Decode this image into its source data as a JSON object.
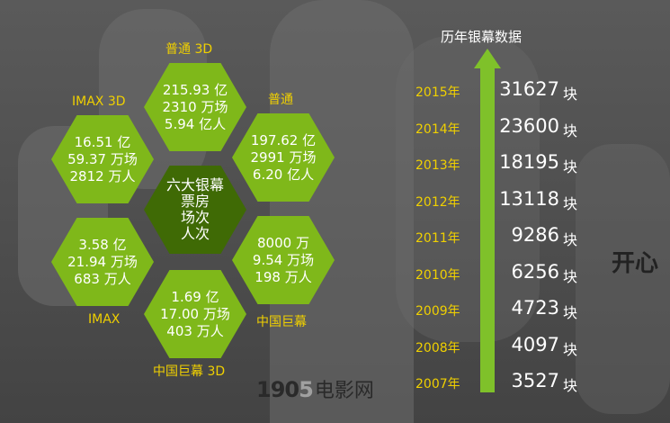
{
  "hexagons": {
    "center": {
      "line1": "六大银幕",
      "line2": "票房",
      "line3": "场次",
      "line4": "人次"
    },
    "standard_3d": {
      "label": "普通 3D",
      "box_office": "215.93 亿",
      "screenings": "2310 万场",
      "admissions": "5.94 亿人"
    },
    "standard": {
      "label": "普通",
      "box_office": "197.62 亿",
      "screenings": "2991 万场",
      "admissions": "6.20 亿人"
    },
    "imax_3d": {
      "label": "IMAX 3D",
      "box_office": "16.51 亿",
      "screenings": "59.37 万场",
      "admissions": "2812 万人"
    },
    "imax": {
      "label": "IMAX",
      "box_office": "3.58 亿",
      "screenings": "21.94 万场",
      "admissions": "683 万人"
    },
    "china_giant": {
      "label": "中国巨幕",
      "box_office": "8000 万",
      "screenings": "9.54 万场",
      "admissions": "198 万人"
    },
    "china_giant_3d": {
      "label": "中国巨幕 3D",
      "box_office": "1.69 亿",
      "screenings": "17.00 万场",
      "admissions": "403 万人"
    }
  },
  "yearly": {
    "title": "历年银幕数据",
    "unit": "块",
    "rows": [
      {
        "year": "2015年",
        "value": "31627"
      },
      {
        "year": "2014年",
        "value": "23600"
      },
      {
        "year": "2013年",
        "value": "18195"
      },
      {
        "year": "2012年",
        "value": "13118"
      },
      {
        "year": "2011年",
        "value": "9286"
      },
      {
        "year": "2010年",
        "value": "6256"
      },
      {
        "year": "2009年",
        "value": "4723"
      },
      {
        "year": "2008年",
        "value": "4097"
      },
      {
        "year": "2007年",
        "value": "3527"
      }
    ]
  },
  "logo": {
    "num_a": "19",
    "num_b": "0",
    "num_c": "5",
    "text": "电影网"
  },
  "poster_mark": "开心",
  "colors": {
    "hex_green": "#7fb81a",
    "hex_dark": "#3f6a05",
    "label_yellow": "#f0d000",
    "arrow_green": "#7fc12a"
  }
}
